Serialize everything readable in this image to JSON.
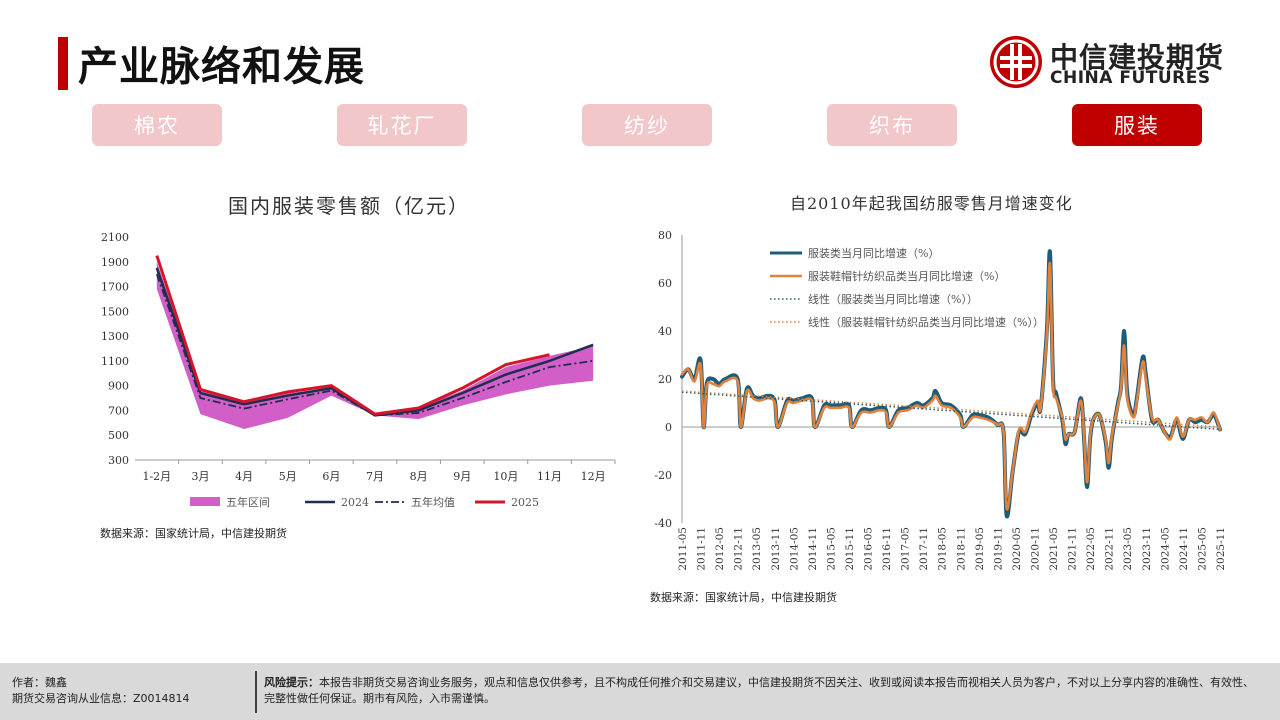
{
  "header": {
    "title": "产业脉络和发展",
    "logo_cn": "中信建投期货",
    "logo_en": "CHINA FUTURES"
  },
  "tabs": [
    {
      "label": "棉农",
      "active": false
    },
    {
      "label": "轧花厂",
      "active": false
    },
    {
      "label": "纺纱",
      "active": false
    },
    {
      "label": "织布",
      "active": false
    },
    {
      "label": "服装",
      "active": true
    }
  ],
  "colors": {
    "brand_red": "#c00000",
    "tab_inactive": "#f2c7ca",
    "band": "#d25fc8",
    "navy": "#1f2d4e",
    "red_2025": "#d6152a",
    "teal": "#1f5c78",
    "orange": "#e0823e"
  },
  "chart_data": [
    {
      "type": "line",
      "title": "国内服装零售额（亿元）",
      "categories": [
        "1-2月",
        "3月",
        "4月",
        "5月",
        "6月",
        "7月",
        "8月",
        "9月",
        "10月",
        "11月",
        "12月"
      ],
      "ylim": [
        300,
        2100
      ],
      "yticks": [
        300,
        500,
        700,
        900,
        1100,
        1300,
        1500,
        1700,
        1900,
        2100
      ],
      "band": {
        "name": "五年区间",
        "low": [
          1680,
          670,
          550,
          640,
          820,
          660,
          630,
          740,
          830,
          900,
          940
        ],
        "high": [
          1900,
          860,
          760,
          840,
          880,
          670,
          720,
          860,
          1050,
          1140,
          1220
        ]
      },
      "series": [
        {
          "name": "2024",
          "values": [
            1850,
            840,
            750,
            820,
            880,
            660,
            700,
            840,
            990,
            1100,
            1230
          ]
        },
        {
          "name": "五年均值",
          "values": [
            1800,
            800,
            715,
            790,
            860,
            660,
            680,
            800,
            930,
            1050,
            1100
          ]
        },
        {
          "name": "2025",
          "values": [
            1950,
            870,
            770,
            850,
            900,
            670,
            720,
            880,
            1070,
            1150,
            null
          ]
        }
      ],
      "source": "数据来源：国家统计局，中信建投期货"
    },
    {
      "type": "line",
      "title": "自2010年起我国纺服零售月增速变化",
      "ylim": [
        -40,
        80
      ],
      "yticks": [
        -40,
        -20,
        0,
        20,
        40,
        60,
        80
      ],
      "xtick_labels": [
        "2011-05",
        "2011-11",
        "2012-05",
        "2012-11",
        "2013-05",
        "2013-11",
        "2014-05",
        "2014-11",
        "2015-05",
        "2015-11",
        "2016-05",
        "2016-11",
        "2017-05",
        "2017-11",
        "2018-05",
        "2018-11",
        "2019-05",
        "2019-11",
        "2020-05",
        "2020-11",
        "2021-05",
        "2021-11",
        "2022-05",
        "2022-11",
        "2023-05",
        "2023-11",
        "2024-05",
        "2024-11",
        "2025-05",
        "2025-11"
      ],
      "x_start": "2011-05",
      "x_end": "2025-11",
      "series": [
        {
          "name": "服装类当月同比增速（%）",
          "points": [
            [
              "2011-05",
              21
            ],
            [
              "2011-07",
              24
            ],
            [
              "2011-09",
              20
            ],
            [
              "2011-11",
              28
            ],
            [
              "2011-12",
              0
            ],
            [
              "2012-01",
              18
            ],
            [
              "2012-03",
              20
            ],
            [
              "2012-05",
              18
            ],
            [
              "2012-07",
              20
            ],
            [
              "2012-11",
              20
            ],
            [
              "2012-12",
              0
            ],
            [
              "2013-02",
              16
            ],
            [
              "2013-04",
              13
            ],
            [
              "2013-06",
              12
            ],
            [
              "2013-09",
              13
            ],
            [
              "2013-11",
              11
            ],
            [
              "2013-12",
              0
            ],
            [
              "2014-03",
              11
            ],
            [
              "2014-05",
              11
            ],
            [
              "2014-08",
              12
            ],
            [
              "2014-11",
              12
            ],
            [
              "2014-12",
              0
            ],
            [
              "2015-03",
              9
            ],
            [
              "2015-05",
              9
            ],
            [
              "2015-08",
              9
            ],
            [
              "2015-11",
              9
            ],
            [
              "2015-12",
              0
            ],
            [
              "2016-03",
              7
            ],
            [
              "2016-06",
              7
            ],
            [
              "2016-09",
              8
            ],
            [
              "2016-11",
              7
            ],
            [
              "2016-12",
              0
            ],
            [
              "2017-03",
              7
            ],
            [
              "2017-06",
              8
            ],
            [
              "2017-09",
              10
            ],
            [
              "2017-11",
              9
            ],
            [
              "2018-02",
              12
            ],
            [
              "2018-03",
              15
            ],
            [
              "2018-05",
              10
            ],
            [
              "2018-08",
              9
            ],
            [
              "2018-11",
              5
            ],
            [
              "2018-12",
              0
            ],
            [
              "2019-03",
              5
            ],
            [
              "2019-05",
              5
            ],
            [
              "2019-08",
              4
            ],
            [
              "2019-11",
              1
            ],
            [
              "2020-01",
              -2
            ],
            [
              "2020-02",
              -37
            ],
            [
              "2020-04",
              -18
            ],
            [
              "2020-06",
              -2
            ],
            [
              "2020-08",
              -3
            ],
            [
              "2020-10",
              5
            ],
            [
              "2020-12",
              10
            ],
            [
              "2021-01",
              8
            ],
            [
              "2021-03",
              40
            ],
            [
              "2021-04",
              73
            ],
            [
              "2021-05",
              20
            ],
            [
              "2021-06",
              14
            ],
            [
              "2021-08",
              3
            ],
            [
              "2021-09",
              -7
            ],
            [
              "2021-10",
              -3
            ],
            [
              "2021-12",
              -2
            ],
            [
              "2022-02",
              12
            ],
            [
              "2022-03",
              -4
            ],
            [
              "2022-04",
              -25
            ],
            [
              "2022-05",
              -5
            ],
            [
              "2022-06",
              3
            ],
            [
              "2022-08",
              5
            ],
            [
              "2022-10",
              -6
            ],
            [
              "2022-11",
              -17
            ],
            [
              "2022-12",
              -5
            ],
            [
              "2023-02",
              10
            ],
            [
              "2023-03",
              17
            ],
            [
              "2023-04",
              40
            ],
            [
              "2023-05",
              14
            ],
            [
              "2023-07",
              5
            ],
            [
              "2023-08",
              11
            ],
            [
              "2023-10",
              29
            ],
            [
              "2023-11",
              22
            ],
            [
              "2024-01",
              3
            ],
            [
              "2024-03",
              3
            ],
            [
              "2024-05",
              -2
            ],
            [
              "2024-07",
              -4
            ],
            [
              "2024-09",
              3
            ],
            [
              "2024-11",
              -5
            ],
            [
              "2025-01",
              3
            ],
            [
              "2025-03",
              2
            ],
            [
              "2025-05",
              3
            ],
            [
              "2025-07",
              2
            ],
            [
              "2025-09",
              5
            ],
            [
              "2025-11",
              -1
            ]
          ]
        },
        {
          "name": "服装鞋帽针纺织品类当月同比增速（%）",
          "points": [
            [
              "2011-05",
              22
            ],
            [
              "2011-07",
              24
            ],
            [
              "2011-09",
              19
            ],
            [
              "2011-11",
              26
            ],
            [
              "2011-12",
              0
            ],
            [
              "2012-01",
              17
            ],
            [
              "2012-03",
              18
            ],
            [
              "2012-05",
              17
            ],
            [
              "2012-07",
              19
            ],
            [
              "2012-11",
              19
            ],
            [
              "2012-12",
              0
            ],
            [
              "2013-02",
              15
            ],
            [
              "2013-04",
              12
            ],
            [
              "2013-06",
              11
            ],
            [
              "2013-09",
              12
            ],
            [
              "2013-11",
              10
            ],
            [
              "2013-12",
              0
            ],
            [
              "2014-03",
              10
            ],
            [
              "2014-05",
              10
            ],
            [
              "2014-08",
              11
            ],
            [
              "2014-11",
              11
            ],
            [
              "2014-12",
              0
            ],
            [
              "2015-03",
              8
            ],
            [
              "2015-05",
              8
            ],
            [
              "2015-08",
              8
            ],
            [
              "2015-11",
              8
            ],
            [
              "2015-12",
              0
            ],
            [
              "2016-03",
              6
            ],
            [
              "2016-06",
              6
            ],
            [
              "2016-09",
              7
            ],
            [
              "2016-11",
              6
            ],
            [
              "2016-12",
              0
            ],
            [
              "2017-03",
              6
            ],
            [
              "2017-06",
              7
            ],
            [
              "2017-09",
              9
            ],
            [
              "2017-11",
              8
            ],
            [
              "2018-02",
              11
            ],
            [
              "2018-03",
              13
            ],
            [
              "2018-05",
              9
            ],
            [
              "2018-08",
              8
            ],
            [
              "2018-11",
              4
            ],
            [
              "2018-12",
              0
            ],
            [
              "2019-03",
              4
            ],
            [
              "2019-05",
              4
            ],
            [
              "2019-08",
              3
            ],
            [
              "2019-11",
              1
            ],
            [
              "2020-01",
              -2
            ],
            [
              "2020-02",
              -34
            ],
            [
              "2020-04",
              -18
            ],
            [
              "2020-06",
              -1
            ],
            [
              "2020-08",
              -2
            ],
            [
              "2020-10",
              6
            ],
            [
              "2020-12",
              11
            ],
            [
              "2021-01",
              8
            ],
            [
              "2021-03",
              38
            ],
            [
              "2021-04",
              68
            ],
            [
              "2021-05",
              18
            ],
            [
              "2021-06",
              12
            ],
            [
              "2021-08",
              4
            ],
            [
              "2021-09",
              -5
            ],
            [
              "2021-10",
              -3
            ],
            [
              "2021-12",
              -2
            ],
            [
              "2022-02",
              11
            ],
            [
              "2022-03",
              -3
            ],
            [
              "2022-04",
              -23
            ],
            [
              "2022-05",
              -4
            ],
            [
              "2022-06",
              3
            ],
            [
              "2022-08",
              5
            ],
            [
              "2022-10",
              -5
            ],
            [
              "2022-11",
              -15
            ],
            [
              "2022-12",
              -4
            ],
            [
              "2023-02",
              9
            ],
            [
              "2023-03",
              16
            ],
            [
              "2023-04",
              34
            ],
            [
              "2023-05",
              12
            ],
            [
              "2023-07",
              4
            ],
            [
              "2023-08",
              10
            ],
            [
              "2023-10",
              27
            ],
            [
              "2023-11",
              20
            ],
            [
              "2024-01",
              4
            ],
            [
              "2024-03",
              3
            ],
            [
              "2024-05",
              -2
            ],
            [
              "2024-07",
              -5
            ],
            [
              "2024-09",
              4
            ],
            [
              "2024-11",
              -4
            ],
            [
              "2025-01",
              3
            ],
            [
              "2025-03",
              3
            ],
            [
              "2025-05",
              4
            ],
            [
              "2025-07",
              2
            ],
            [
              "2025-09",
              6
            ],
            [
              "2025-11",
              -1
            ]
          ]
        },
        {
          "name": "线性（服装类当月同比增速（%））",
          "points": [
            [
              "2011-05",
              14.5
            ],
            [
              "2025-11",
              -1
            ]
          ]
        },
        {
          "name": "线性（服装鞋帽针纺织品类当月同比增速（%））",
          "points": [
            [
              "2011-05",
              15
            ],
            [
              "2025-11",
              0
            ]
          ]
        }
      ],
      "source": "数据来源：国家统计局，中信建投期货"
    }
  ],
  "footer": {
    "author": "作者：魏鑫",
    "license": "期货交易咨询从业信息：Z0014814",
    "risk_label": "风险提示：",
    "risk_text": "本报告非期货交易咨询业务服务，观点和信息仅供参考，且不构成任何推介和交易建议，中信建投期货不因关注、收到或阅读本报告而视相关人员为客户，不对以上分享内容的准确性、有效性、完整性做任何保证。期市有风险，入市需谨慎。"
  }
}
